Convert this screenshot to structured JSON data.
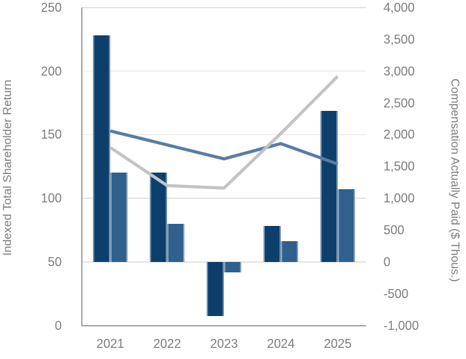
{
  "chart_data": {
    "type": "combo-bar-line",
    "title": "",
    "legend": "none",
    "grid": true,
    "categories": [
      "2021",
      "2022",
      "2023",
      "2024",
      "2025"
    ],
    "left_axis": {
      "title": "Indexed Total Shareholder Return",
      "min": 0,
      "max": 250,
      "step": 50,
      "tick_labels": [
        "0",
        "50",
        "100",
        "150",
        "200",
        "250"
      ]
    },
    "right_axis": {
      "title": "Compensation Actually Paid ($ Thous.)",
      "min": -1000,
      "max": 4000,
      "step": 500,
      "tick_labels": [
        "-1,000",
        "-500",
        "0",
        "500",
        "1,000",
        "1,500",
        "2,000",
        "2,500",
        "3,000",
        "3,500",
        "4,000"
      ]
    },
    "series": [
      {
        "id": "bars-dark-blue",
        "type": "bar",
        "axis": "right",
        "color": "#0d3f6d",
        "values": [
          3560,
          1410,
          -850,
          570,
          2370
        ]
      },
      {
        "id": "bars-medium-blue",
        "type": "bar",
        "axis": "right",
        "color": "#2f608e",
        "values": [
          1410,
          600,
          -170,
          320,
          1140
        ]
      },
      {
        "id": "line-blue",
        "type": "line",
        "axis": "left",
        "color": "#567da7",
        "values": [
          153,
          142,
          131,
          143,
          127
        ]
      },
      {
        "id": "line-gray",
        "type": "line",
        "axis": "left",
        "color": "#c2c3c6",
        "values": [
          140,
          110,
          108,
          151,
          196
        ]
      }
    ],
    "colors": {
      "gridline": "#e4e4e4",
      "axis_line": "#a6a6a6",
      "tick_text": "#7d7d7d",
      "background": "#ffffff"
    }
  }
}
